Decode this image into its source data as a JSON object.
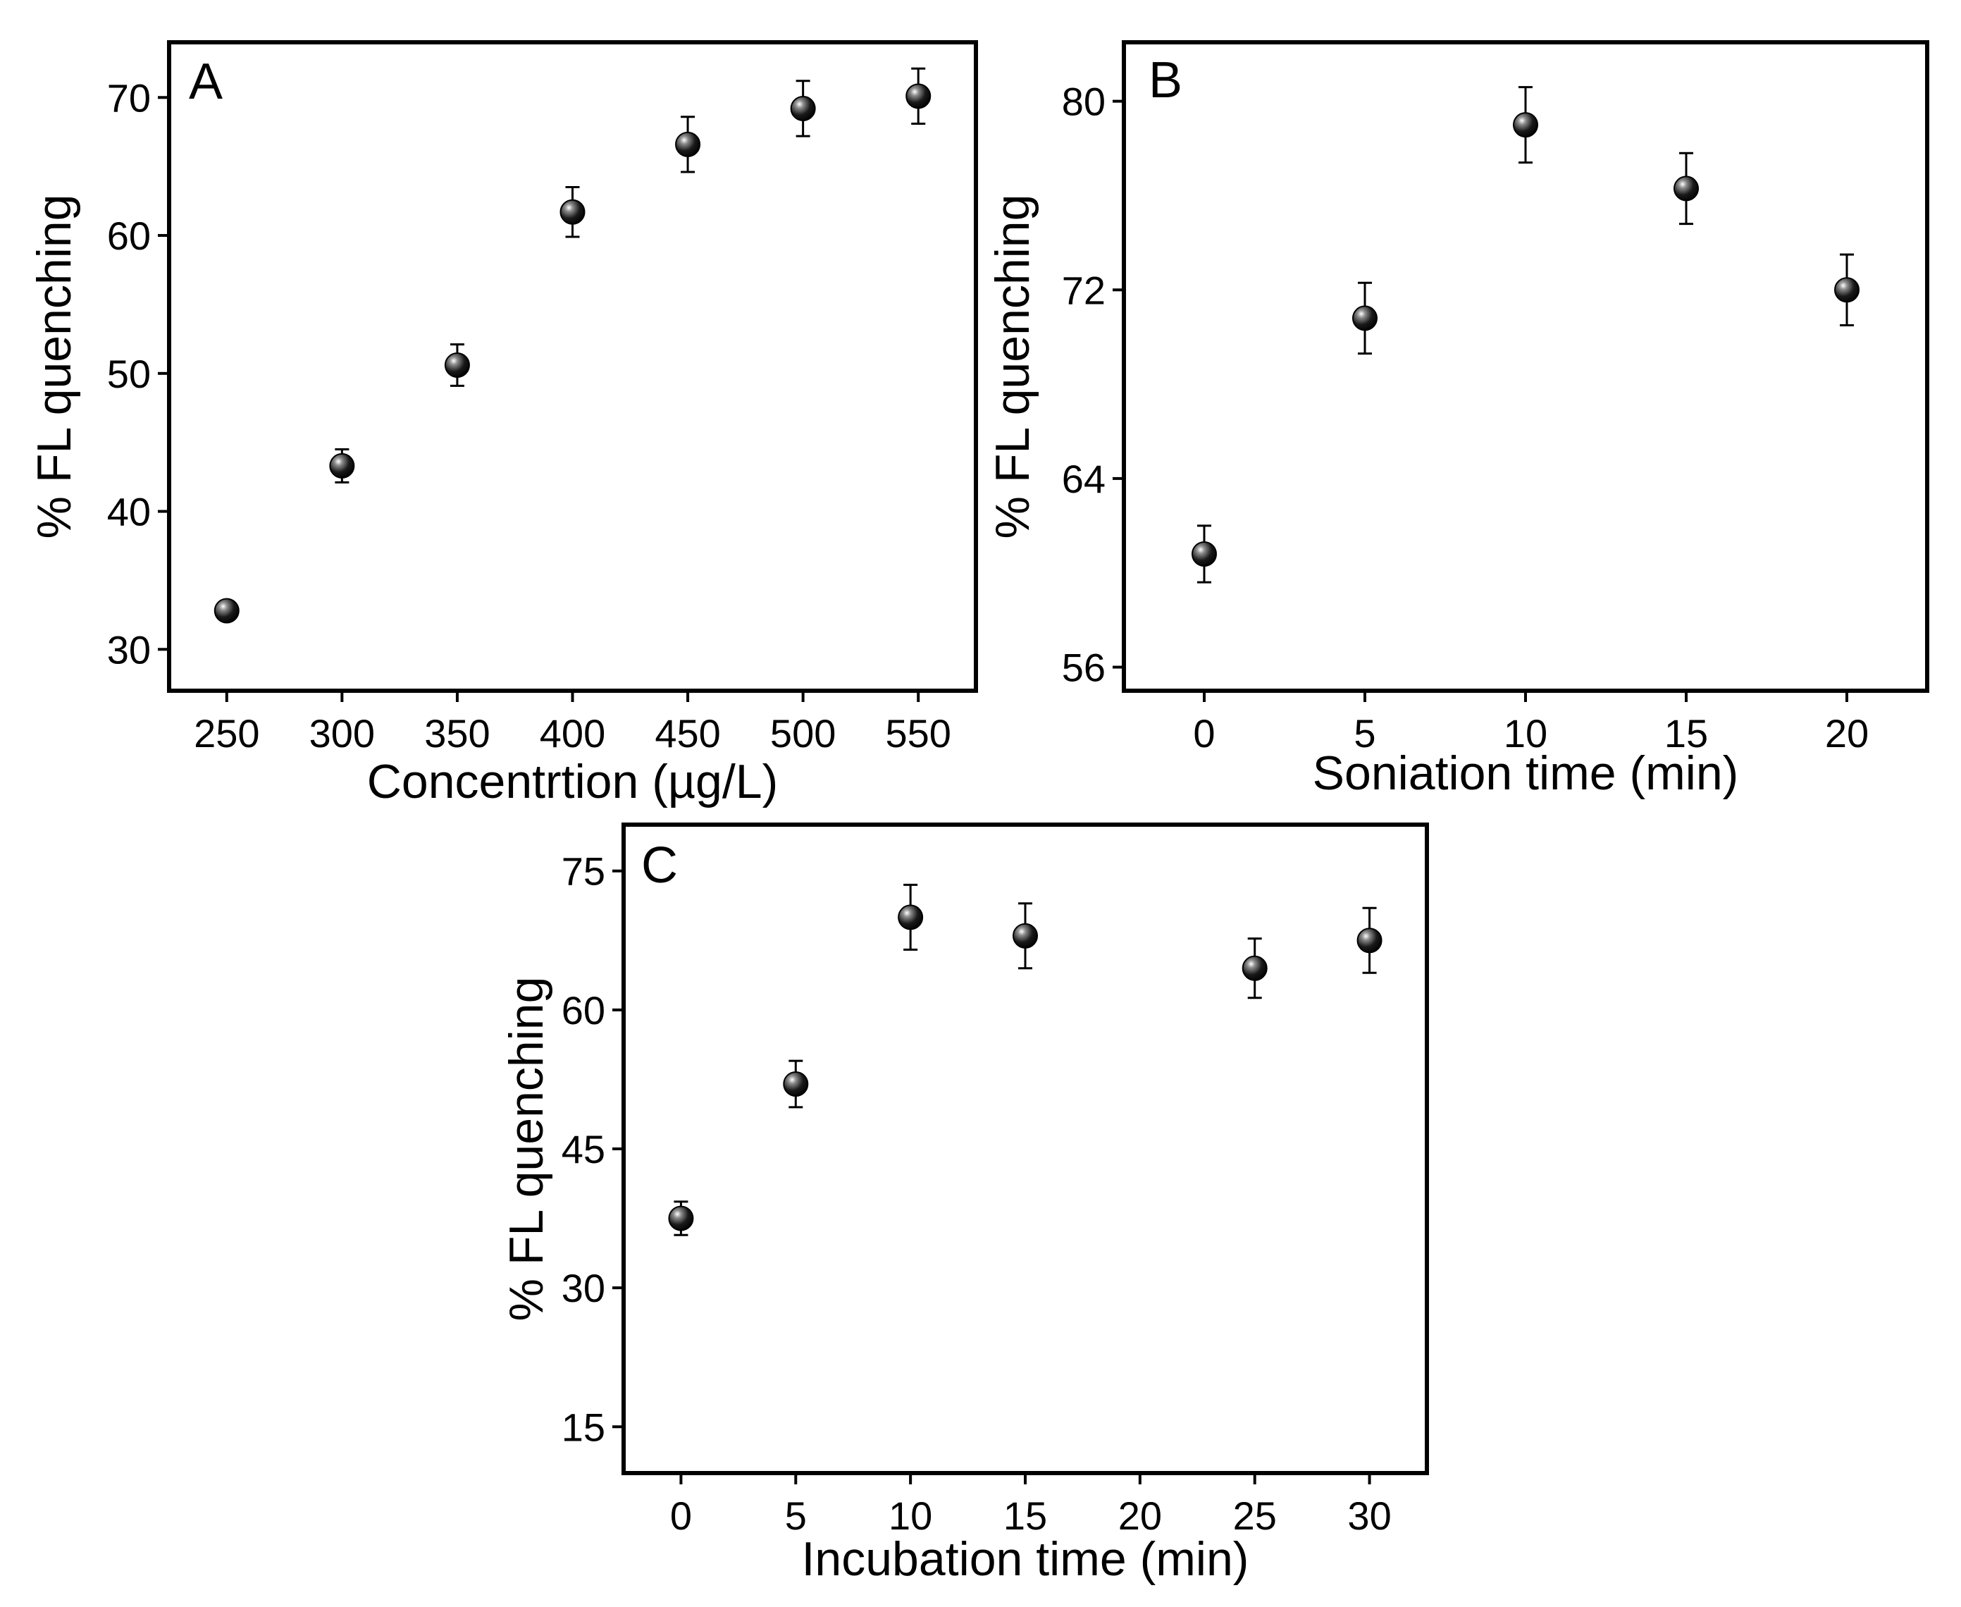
{
  "chart_data": [
    {
      "type": "scatter",
      "panel_label": "A",
      "xlabel": "Concentrtion (µg/L)",
      "ylabel": "% FL quenching",
      "xlim": [
        225,
        575
      ],
      "ylim": [
        27,
        74
      ],
      "xticks": [
        250,
        300,
        350,
        400,
        450,
        500,
        550
      ],
      "yticks": [
        30,
        40,
        50,
        60,
        70
      ],
      "x": [
        250,
        300,
        350,
        400,
        450,
        500,
        550
      ],
      "y": [
        32.8,
        43.3,
        50.6,
        61.7,
        66.6,
        69.2,
        70.1
      ],
      "error": [
        0.6,
        1.2,
        1.5,
        1.8,
        2.0,
        2.0,
        2.0
      ]
    },
    {
      "type": "scatter",
      "panel_label": "B",
      "xlabel": "Soniation time (min)",
      "ylabel": "% FL quenching",
      "xlim": [
        -2.5,
        22.5
      ],
      "ylim": [
        55,
        82.5
      ],
      "xticks": [
        0,
        5,
        10,
        15,
        20
      ],
      "yticks": [
        56,
        64,
        72,
        80
      ],
      "x": [
        0,
        5,
        10,
        15,
        20
      ],
      "y": [
        60.8,
        70.8,
        79.0,
        76.3,
        72.0
      ],
      "error": [
        1.2,
        1.5,
        1.6,
        1.5,
        1.5
      ]
    },
    {
      "type": "scatter",
      "panel_label": "C",
      "xlabel": "Incubation time (min)",
      "ylabel": "% FL quenching",
      "xlim": [
        -2.5,
        32.5
      ],
      "ylim": [
        10,
        80
      ],
      "xticks": [
        0,
        5,
        10,
        15,
        20,
        25,
        30
      ],
      "yticks": [
        15,
        30,
        45,
        60,
        75
      ],
      "x": [
        0,
        5,
        10,
        15,
        25,
        30
      ],
      "y": [
        37.5,
        52.0,
        70.0,
        68.0,
        64.5,
        67.5
      ],
      "error": [
        1.8,
        2.5,
        3.5,
        3.5,
        3.2,
        3.5
      ]
    }
  ]
}
